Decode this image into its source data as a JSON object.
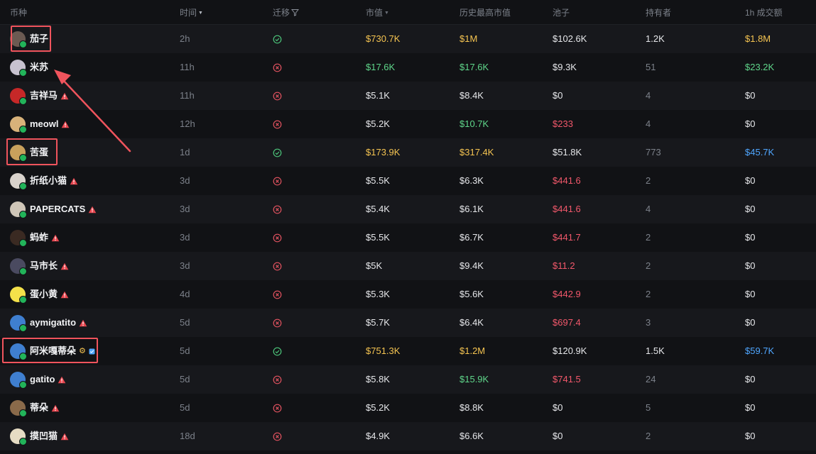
{
  "headers": {
    "coin": "币种",
    "time": "时间",
    "migration": "迁移",
    "market_cap": "市值",
    "ath_market_cap": "历史最高市值",
    "pool": "池子",
    "holders": "持有者",
    "volume_1h": "1h 成交额"
  },
  "colors": {
    "gold": "#f5c451",
    "green": "#5fd68a",
    "red": "#f2586b",
    "blue": "#4fa6ff",
    "highlight": "#f0545d"
  },
  "rows": [
    {
      "name": "茄子",
      "warn": false,
      "time": "2h",
      "migrated": true,
      "mcap": "$730.7K",
      "ath": "$1M",
      "pool": "$102.6K",
      "holders": "1.2K",
      "vol": "$1.8M",
      "avatar_color": "#6b5a52"
    },
    {
      "name": "米苏",
      "warn": false,
      "time": "11h",
      "migrated": false,
      "mcap": "$17.6K",
      "ath": "$17.6K",
      "pool": "$9.3K",
      "holders": "51",
      "vol": "$23.2K",
      "avatar_color": "#c7c2cf"
    },
    {
      "name": "吉祥马",
      "warn": true,
      "time": "11h",
      "migrated": false,
      "mcap": "$5.1K",
      "ath": "$8.4K",
      "pool": "$0",
      "holders": "4",
      "vol": "$0",
      "avatar_color": "#c62828"
    },
    {
      "name": "meowl",
      "warn": true,
      "time": "12h",
      "migrated": false,
      "mcap": "$5.2K",
      "ath": "$10.7K",
      "pool": "$233",
      "holders": "4",
      "vol": "$0",
      "avatar_color": "#d8b27a"
    },
    {
      "name": "苦蛋",
      "warn": false,
      "time": "1d",
      "migrated": true,
      "mcap": "$173.9K",
      "ath": "$317.4K",
      "pool": "$51.8K",
      "holders": "773",
      "vol": "$45.7K",
      "avatar_color": "#c9a15c"
    },
    {
      "name": "折纸小猫",
      "warn": true,
      "time": "3d",
      "migrated": false,
      "mcap": "$5.5K",
      "ath": "$6.3K",
      "pool": "$441.6",
      "holders": "2",
      "vol": "$0",
      "avatar_color": "#d9d3cc"
    },
    {
      "name": "PAPERCATS",
      "warn": true,
      "time": "3d",
      "migrated": false,
      "mcap": "$5.4K",
      "ath": "$6.1K",
      "pool": "$441.6",
      "holders": "4",
      "vol": "$0",
      "avatar_color": "#cfc6b8"
    },
    {
      "name": "蚂蚱",
      "warn": true,
      "time": "3d",
      "migrated": false,
      "mcap": "$5.5K",
      "ath": "$6.7K",
      "pool": "$441.7",
      "holders": "2",
      "vol": "$0",
      "avatar_color": "#3a2a22"
    },
    {
      "name": "马市长",
      "warn": true,
      "time": "3d",
      "migrated": false,
      "mcap": "$5K",
      "ath": "$9.4K",
      "pool": "$11.2",
      "holders": "2",
      "vol": "$0",
      "avatar_color": "#4a4a60"
    },
    {
      "name": "蛋小黄",
      "warn": true,
      "time": "4d",
      "migrated": false,
      "mcap": "$5.3K",
      "ath": "$5.6K",
      "pool": "$442.9",
      "holders": "2",
      "vol": "$0",
      "avatar_color": "#f4e14a"
    },
    {
      "name": "aymigatito",
      "warn": true,
      "time": "5d",
      "migrated": false,
      "mcap": "$5.7K",
      "ath": "$6.4K",
      "pool": "$697.4",
      "holders": "3",
      "vol": "$0",
      "avatar_color": "#3f7fd0"
    },
    {
      "name": "阿米嘎蒂朵",
      "warn": false,
      "extra": true,
      "time": "5d",
      "migrated": true,
      "mcap": "$751.3K",
      "ath": "$1.2M",
      "pool": "$120.9K",
      "holders": "1.5K",
      "vol": "$59.7K",
      "avatar_color": "#3f7fd0"
    },
    {
      "name": "gatito",
      "warn": true,
      "time": "5d",
      "migrated": false,
      "mcap": "$5.8K",
      "ath": "$15.9K",
      "pool": "$741.5",
      "holders": "24",
      "vol": "$0",
      "avatar_color": "#3f7fd0"
    },
    {
      "name": "蒂朵",
      "warn": true,
      "time": "5d",
      "migrated": false,
      "mcap": "$5.2K",
      "ath": "$8.8K",
      "pool": "$0",
      "holders": "5",
      "vol": "$0",
      "avatar_color": "#8a6a4a"
    },
    {
      "name": "摸凹猫",
      "warn": true,
      "time": "18d",
      "migrated": false,
      "mcap": "$4.9K",
      "ath": "$6.6K",
      "pool": "$0",
      "holders": "2",
      "vol": "$0",
      "avatar_color": "#e6dcc4"
    }
  ]
}
